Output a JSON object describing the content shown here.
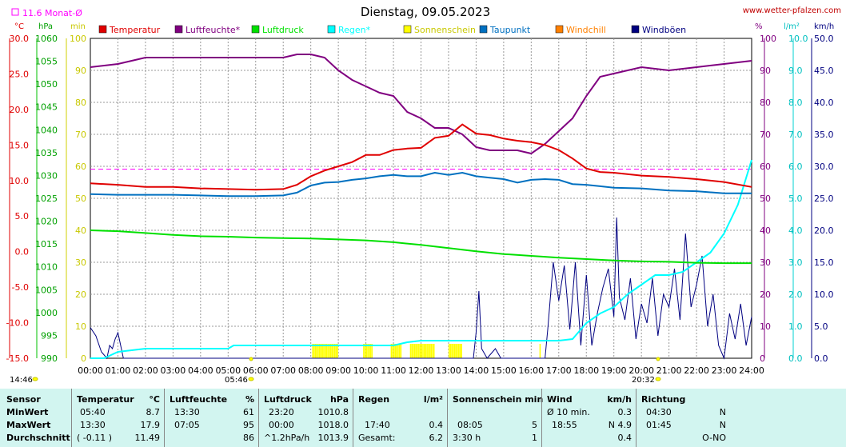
{
  "header": {
    "title": "Dienstag, 09.05.2023",
    "site": "www.wetter-pfalzen.com",
    "monthly_avg": "11.6 Monat-Ø",
    "time_left": "14:46",
    "sunrise": "05:46",
    "sunset": "20:32"
  },
  "units": {
    "temp": "°C",
    "press": "hPa",
    "min": "min",
    "pct": "%",
    "rain": "l/m²",
    "wind": "km/h"
  },
  "colors": {
    "temperature": "#e00000",
    "humidity": "#800080",
    "pressure": "#00e000",
    "rain": "#00ffff",
    "sunshine": "#ffff00",
    "dewpoint": "#0070c0",
    "windchill": "#ff8000",
    "gust": "#000080",
    "monthly_avg": "#ff00ff"
  },
  "chart_data": {
    "type": "line",
    "title": "Dienstag, 09.05.2023",
    "legend": [
      "Temperatur",
      "Luftfeuchte*",
      "Luftdruck",
      "Regen*",
      "Sonnenschein",
      "Taupunkt",
      "Windchill",
      "Windböen"
    ],
    "legend_placement": "top",
    "grid": true,
    "x_ticks": [
      "00:00",
      "01:00",
      "02:00",
      "03:00",
      "04:00",
      "05:00",
      "06:00",
      "07:00",
      "08:00",
      "09:00",
      "10:00",
      "11:00",
      "12:00",
      "13:00",
      "14:00",
      "15:00",
      "16:00",
      "17:00",
      "18:00",
      "19:00",
      "20:00",
      "21:00",
      "22:00",
      "23:00",
      "24:00"
    ],
    "axes": {
      "temp_ticks": [
        "30.0",
        "25.0",
        "20.0",
        "15.0",
        "10.0",
        "5.0",
        "0.0",
        "-5.0",
        "-10.0",
        "-15.0"
      ],
      "press_ticks": [
        "1060",
        "1055",
        "1050",
        "1045",
        "1040",
        "1035",
        "1030",
        "1025",
        "1020",
        "1015",
        "1010",
        "1005",
        "1000",
        "995",
        "990"
      ],
      "min_ticks": [
        "100",
        "90",
        "80",
        "70",
        "60",
        "50",
        "40",
        "30",
        "20",
        "10",
        "0"
      ],
      "pct_ticks": [
        "100",
        "90",
        "80",
        "70",
        "60",
        "50",
        "40",
        "30",
        "20",
        "10",
        "0"
      ],
      "rain_ticks": [
        "10.0",
        "9.0",
        "8.0",
        "7.0",
        "6.0",
        "5.0",
        "4.0",
        "3.0",
        "2.0",
        "1.0",
        "0.0"
      ],
      "wind_ticks": [
        "50.0",
        "45.0",
        "40.0",
        "35.0",
        "30.0",
        "25.0",
        "20.0",
        "15.0",
        "10.0",
        "5.0",
        "0.0"
      ],
      "temp_range": [
        -15,
        30
      ],
      "press_range": [
        990,
        1060
      ],
      "pct_range": [
        0,
        100
      ],
      "rain_range": [
        0,
        10
      ],
      "wind_range": [
        0,
        50
      ],
      "min_range": [
        0,
        100
      ]
    },
    "monthly_avg_temp": 11.6,
    "series": [
      {
        "name": "Temperatur",
        "unit": "°C",
        "points": [
          [
            0,
            9.6
          ],
          [
            1,
            9.4
          ],
          [
            2,
            9.1
          ],
          [
            3,
            9.1
          ],
          [
            4,
            8.9
          ],
          [
            5,
            8.8
          ],
          [
            6,
            8.7
          ],
          [
            7,
            8.8
          ],
          [
            7.5,
            9.4
          ],
          [
            8,
            10.6
          ],
          [
            8.5,
            11.4
          ],
          [
            9,
            12.0
          ],
          [
            9.5,
            12.6
          ],
          [
            10,
            13.6
          ],
          [
            10.5,
            13.6
          ],
          [
            11,
            14.3
          ],
          [
            11.5,
            14.5
          ],
          [
            12,
            14.6
          ],
          [
            12.5,
            16.0
          ],
          [
            13,
            16.3
          ],
          [
            13.5,
            17.9
          ],
          [
            14,
            16.6
          ],
          [
            14.5,
            16.4
          ],
          [
            15,
            15.9
          ],
          [
            15.5,
            15.6
          ],
          [
            16,
            15.4
          ],
          [
            16.5,
            15.0
          ],
          [
            17,
            14.3
          ],
          [
            17.5,
            13.1
          ],
          [
            18,
            11.7
          ],
          [
            18.5,
            11.2
          ],
          [
            19,
            11.1
          ],
          [
            20,
            10.7
          ],
          [
            21,
            10.5
          ],
          [
            22,
            10.2
          ],
          [
            23,
            9.8
          ],
          [
            24,
            9.1
          ]
        ]
      },
      {
        "name": "Luftfeuchte*",
        "unit": "%",
        "points": [
          [
            0,
            91
          ],
          [
            1,
            92
          ],
          [
            1.5,
            93
          ],
          [
            2,
            94
          ],
          [
            3,
            94
          ],
          [
            4,
            94
          ],
          [
            5,
            94
          ],
          [
            6,
            94
          ],
          [
            7,
            94
          ],
          [
            7.5,
            95
          ],
          [
            8,
            95
          ],
          [
            8.5,
            94
          ],
          [
            9,
            90
          ],
          [
            9.5,
            87
          ],
          [
            10,
            85
          ],
          [
            10.5,
            83
          ],
          [
            11,
            82
          ],
          [
            11.5,
            77
          ],
          [
            12,
            75
          ],
          [
            12.5,
            72
          ],
          [
            13,
            72
          ],
          [
            13.5,
            70
          ],
          [
            14,
            66
          ],
          [
            14.5,
            65
          ],
          [
            15,
            65
          ],
          [
            15.5,
            65
          ],
          [
            16,
            64
          ],
          [
            16.5,
            67
          ],
          [
            17,
            71
          ],
          [
            17.5,
            75
          ],
          [
            18,
            82
          ],
          [
            18.5,
            88
          ],
          [
            19,
            89
          ],
          [
            20,
            91
          ],
          [
            21,
            90
          ],
          [
            22,
            91
          ],
          [
            23,
            92
          ],
          [
            24,
            93
          ]
        ]
      },
      {
        "name": "Luftdruck",
        "unit": "hPa",
        "points": [
          [
            0,
            1018.0
          ],
          [
            1,
            1017.8
          ],
          [
            2,
            1017.4
          ],
          [
            3,
            1017.0
          ],
          [
            4,
            1016.7
          ],
          [
            5,
            1016.6
          ],
          [
            6,
            1016.4
          ],
          [
            7,
            1016.3
          ],
          [
            8,
            1016.2
          ],
          [
            9,
            1016.0
          ],
          [
            10,
            1015.8
          ],
          [
            11,
            1015.4
          ],
          [
            12,
            1014.8
          ],
          [
            13,
            1014.1
          ],
          [
            14,
            1013.4
          ],
          [
            15,
            1012.8
          ],
          [
            16,
            1012.4
          ],
          [
            17,
            1012.0
          ],
          [
            18,
            1011.7
          ],
          [
            19,
            1011.4
          ],
          [
            20,
            1011.2
          ],
          [
            21,
            1011.1
          ],
          [
            22,
            1010.9
          ],
          [
            23,
            1010.8
          ],
          [
            24,
            1010.8
          ]
        ]
      },
      {
        "name": "Regen*",
        "unit": "l/m²",
        "points": [
          [
            0,
            0
          ],
          [
            0.5,
            0
          ],
          [
            1,
            0.2
          ],
          [
            1.5,
            0.25
          ],
          [
            2,
            0.3
          ],
          [
            3,
            0.3
          ],
          [
            4,
            0.3
          ],
          [
            5,
            0.3
          ],
          [
            5.2,
            0.4
          ],
          [
            5.5,
            0.4
          ],
          [
            6,
            0.4
          ],
          [
            7,
            0.4
          ],
          [
            8,
            0.4
          ],
          [
            9,
            0.4
          ],
          [
            10,
            0.4
          ],
          [
            11,
            0.4
          ],
          [
            11.5,
            0.5
          ],
          [
            12,
            0.55
          ],
          [
            13,
            0.55
          ],
          [
            14,
            0.55
          ],
          [
            15,
            0.55
          ],
          [
            16,
            0.55
          ],
          [
            17,
            0.55
          ],
          [
            17.5,
            0.6
          ],
          [
            17.7,
            0.8
          ],
          [
            18,
            1.1
          ],
          [
            18.5,
            1.4
          ],
          [
            19,
            1.6
          ],
          [
            19.5,
            2.0
          ],
          [
            20,
            2.3
          ],
          [
            20.5,
            2.6
          ],
          [
            21,
            2.6
          ],
          [
            21.5,
            2.7
          ],
          [
            22,
            3.0
          ],
          [
            22.5,
            3.3
          ],
          [
            23,
            3.9
          ],
          [
            23.5,
            4.8
          ],
          [
            24,
            6.2
          ]
        ]
      },
      {
        "name": "Sonnenschein",
        "unit": "min",
        "intervals": [
          [
            8.05,
            9.0
          ],
          [
            9.9,
            10.25
          ],
          [
            10.9,
            11.3
          ],
          [
            11.6,
            12.5
          ],
          [
            13.0,
            13.5
          ],
          [
            16.3,
            16.35
          ]
        ]
      },
      {
        "name": "Taupunkt",
        "unit": "°C",
        "points": [
          [
            0,
            8.1
          ],
          [
            1,
            8.0
          ],
          [
            2,
            8.0
          ],
          [
            3,
            8.0
          ],
          [
            4,
            7.9
          ],
          [
            5,
            7.8
          ],
          [
            6,
            7.8
          ],
          [
            7,
            7.9
          ],
          [
            7.5,
            8.3
          ],
          [
            8,
            9.3
          ],
          [
            8.5,
            9.7
          ],
          [
            9,
            9.8
          ],
          [
            9.5,
            10.1
          ],
          [
            10,
            10.3
          ],
          [
            10.5,
            10.6
          ],
          [
            11,
            10.8
          ],
          [
            11.5,
            10.6
          ],
          [
            12,
            10.6
          ],
          [
            12.5,
            11.1
          ],
          [
            13,
            10.8
          ],
          [
            13.5,
            11.1
          ],
          [
            14,
            10.6
          ],
          [
            14.5,
            10.4
          ],
          [
            15,
            10.2
          ],
          [
            15.5,
            9.7
          ],
          [
            16,
            10.1
          ],
          [
            16.5,
            10.2
          ],
          [
            17,
            10.1
          ],
          [
            17.5,
            9.5
          ],
          [
            18,
            9.4
          ],
          [
            18.5,
            9.2
          ],
          [
            19,
            9.0
          ],
          [
            20,
            8.9
          ],
          [
            21,
            8.6
          ],
          [
            22,
            8.5
          ],
          [
            23,
            8.2
          ],
          [
            24,
            8.2
          ]
        ]
      },
      {
        "name": "Windchill",
        "unit": "°C",
        "points": []
      },
      {
        "name": "Windböen",
        "unit": "km/h",
        "points": [
          [
            0,
            4.8
          ],
          [
            0.2,
            3.5
          ],
          [
            0.4,
            1.0
          ],
          [
            0.6,
            0
          ],
          [
            0.7,
            2.0
          ],
          [
            0.8,
            1.5
          ],
          [
            0.9,
            3.0
          ],
          [
            1.0,
            4.0
          ],
          [
            1.2,
            0
          ],
          [
            1.4,
            0
          ],
          [
            13.9,
            0
          ],
          [
            14.0,
            4.0
          ],
          [
            14.1,
            10.5
          ],
          [
            14.2,
            1.5
          ],
          [
            14.4,
            0
          ],
          [
            14.7,
            1.5
          ],
          [
            14.9,
            0
          ],
          [
            15.5,
            0
          ],
          [
            16.5,
            0
          ],
          [
            16.6,
            4.5
          ],
          [
            16.8,
            15.0
          ],
          [
            17.0,
            9.0
          ],
          [
            17.2,
            14.5
          ],
          [
            17.4,
            4.5
          ],
          [
            17.6,
            15.0
          ],
          [
            17.8,
            2.0
          ],
          [
            18.0,
            13.0
          ],
          [
            18.2,
            2.0
          ],
          [
            18.4,
            7.0
          ],
          [
            18.6,
            11.0
          ],
          [
            18.8,
            14.0
          ],
          [
            19.0,
            6.5
          ],
          [
            19.1,
            22.0
          ],
          [
            19.2,
            9.5
          ],
          [
            19.4,
            6.0
          ],
          [
            19.6,
            12.5
          ],
          [
            19.8,
            3.0
          ],
          [
            20.0,
            8.5
          ],
          [
            20.2,
            5.5
          ],
          [
            20.4,
            12.5
          ],
          [
            20.6,
            3.5
          ],
          [
            20.8,
            10.0
          ],
          [
            21.0,
            8.0
          ],
          [
            21.2,
            14.0
          ],
          [
            21.4,
            6.0
          ],
          [
            21.6,
            19.5
          ],
          [
            21.8,
            8.0
          ],
          [
            22.0,
            11.5
          ],
          [
            22.2,
            16.0
          ],
          [
            22.4,
            5.0
          ],
          [
            22.6,
            10.0
          ],
          [
            22.8,
            2.0
          ],
          [
            23.0,
            0
          ],
          [
            23.2,
            7.0
          ],
          [
            23.4,
            3.0
          ],
          [
            23.6,
            8.5
          ],
          [
            23.8,
            2.0
          ],
          [
            24.0,
            6.5
          ]
        ]
      }
    ]
  },
  "stats": {
    "rows": [
      "MinWert",
      "MaxWert",
      "Durchschnitt"
    ],
    "sensor": "Sensor",
    "temperature": {
      "title": "Temperatur",
      "unit": "°C",
      "cells": [
        [
          "05:40",
          "8.7"
        ],
        [
          "13:30",
          "17.9"
        ],
        [
          "( -0.11 )",
          "11.49"
        ]
      ]
    },
    "humidity": {
      "title": "Luftfeuchte",
      "unit": "%",
      "cells": [
        [
          "13:30",
          "61"
        ],
        [
          "07:05",
          "95"
        ],
        [
          "",
          "86"
        ]
      ]
    },
    "pressure": {
      "title": "Luftdruck",
      "unit": "hPa",
      "cells": [
        [
          "23:20",
          "1010.8"
        ],
        [
          "00:00",
          "1018.0"
        ],
        [
          "^1.2hPa/h",
          "1013.9"
        ]
      ]
    },
    "rain": {
      "title": "Regen",
      "unit": "l/m²",
      "cells": [
        [
          "",
          ""
        ],
        [
          "17:40",
          "0.4"
        ],
        [
          "Gesamt:",
          "6.2"
        ]
      ]
    },
    "sun": {
      "title": "Sonnenschein min",
      "cells": [
        [
          "",
          ""
        ],
        [
          "08:05",
          "5"
        ],
        [
          "3:30 h",
          "1"
        ]
      ]
    },
    "wind": {
      "title": "Wind",
      "unit": "km/h",
      "cells": [
        [
          "Ø 10 min.",
          "0.3"
        ],
        [
          "18:55",
          "N 4.9"
        ],
        [
          "",
          "0.4"
        ]
      ]
    },
    "direction": {
      "title": "Richtung",
      "cells": [
        [
          "04:30",
          "N"
        ],
        [
          "01:45",
          "N"
        ],
        [
          "",
          "O-NO"
        ]
      ]
    }
  }
}
